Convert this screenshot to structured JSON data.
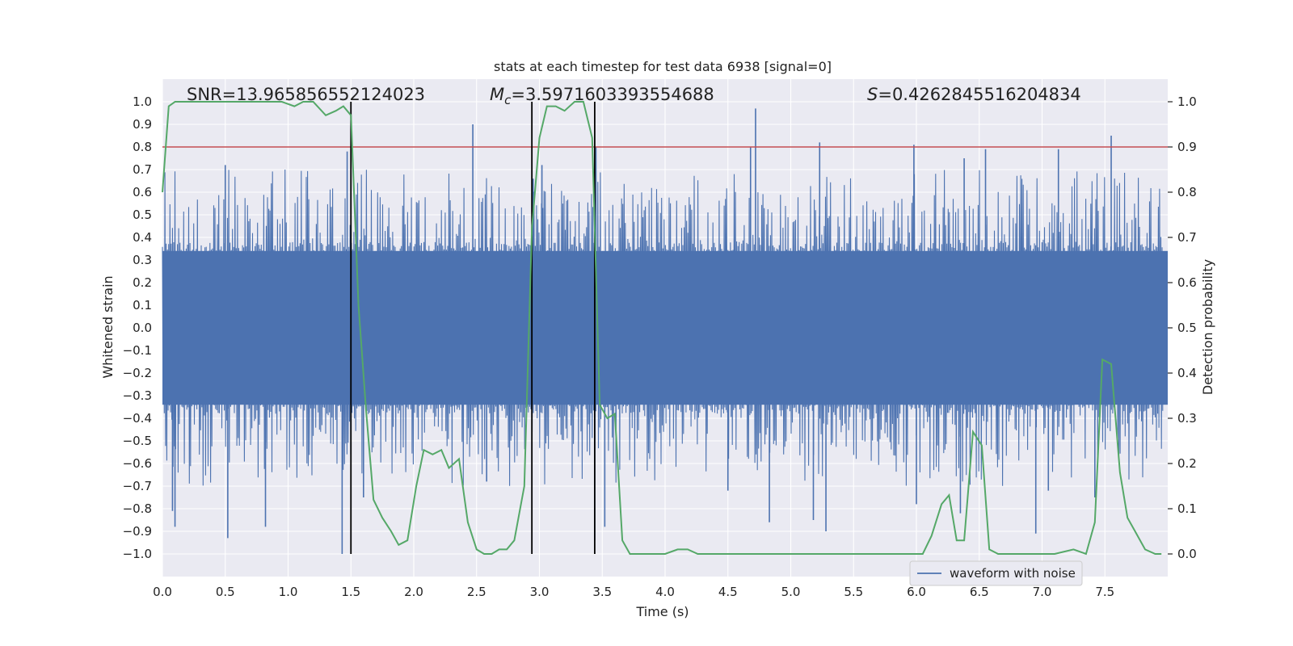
{
  "chart_data": {
    "type": "line",
    "title": "stats at each timestep for test data 6938 [signal=0]",
    "xlabel": "Time (s)",
    "ylabel_left": "Whitened strain",
    "ylabel_right": "Detection probability",
    "xlim": [
      0.0,
      8.0
    ],
    "ylim_left": [
      -1.1,
      1.1
    ],
    "ylim_right": [
      -0.05,
      1.05
    ],
    "x_ticks": [
      0.0,
      0.5,
      1.0,
      1.5,
      2.0,
      2.5,
      3.0,
      3.5,
      4.0,
      4.5,
      5.0,
      5.5,
      6.0,
      6.5,
      7.0,
      7.5
    ],
    "x_tick_labels": [
      "0.0",
      "0.5",
      "1.0",
      "1.5",
      "2.0",
      "2.5",
      "3.0",
      "3.5",
      "4.0",
      "4.5",
      "5.0",
      "5.5",
      "6.0",
      "6.5",
      "7.0",
      "7.5"
    ],
    "y_left_ticks": [
      1.0,
      0.9,
      0.8,
      0.7,
      0.6,
      0.5,
      0.4,
      0.3,
      0.2,
      0.1,
      0.0,
      -0.1,
      -0.2,
      -0.3,
      -0.4,
      -0.5,
      -0.6,
      -0.7,
      -0.8,
      -0.9,
      -1.0
    ],
    "y_left_tick_labels": [
      "1.0",
      "0.9",
      "0.8",
      "0.7",
      "0.6",
      "0.5",
      "0.4",
      "0.3",
      "0.2",
      "0.1",
      "0.0",
      "−0.1",
      "−0.2",
      "−0.3",
      "−0.4",
      "−0.5",
      "−0.6",
      "−0.7",
      "−0.8",
      "−0.9",
      "−1.0"
    ],
    "y_right_ticks": [
      1.0,
      0.9,
      0.8,
      0.7,
      0.6,
      0.5,
      0.4,
      0.3,
      0.2,
      0.1,
      0.0
    ],
    "y_right_tick_labels": [
      "1.0",
      "0.9",
      "0.8",
      "0.7",
      "0.6",
      "0.5",
      "0.4",
      "0.3",
      "0.2",
      "0.1",
      "0.0"
    ],
    "annotations": {
      "snr": "SNR=13.965856552124023",
      "mc_symbol": "M",
      "mc_subscript": "c",
      "mc_value": "=3.5971603393554688",
      "s_symbol": "S",
      "s_value": "=0.4262845516204834"
    },
    "threshold": {
      "value": 0.9,
      "axis": "right",
      "color": "#c44e52"
    },
    "vertical_markers": [
      1.5,
      2.94,
      3.44
    ],
    "legend": {
      "label": "waveform with noise",
      "placement": "lower-right"
    },
    "series": [
      {
        "name": "waveform with noise",
        "axis": "left",
        "color": "#4c72b0",
        "note": "dense noisy whitened strain; envelope approximations",
        "core_amplitude": 0.38,
        "typical_peak": 0.58,
        "spikes_positive": [
          [
            0.5,
            0.72
          ],
          [
            1.47,
            0.78
          ],
          [
            2.47,
            0.9
          ],
          [
            2.95,
            0.66
          ],
          [
            3.02,
            0.72
          ],
          [
            3.45,
            0.8
          ],
          [
            4.72,
            0.97
          ],
          [
            4.68,
            0.8
          ],
          [
            5.23,
            0.82
          ],
          [
            5.98,
            0.81
          ],
          [
            6.55,
            0.79
          ],
          [
            6.38,
            0.75
          ],
          [
            7.55,
            0.85
          ],
          [
            7.13,
            0.79
          ]
        ],
        "spikes_negative": [
          [
            0.08,
            -0.81
          ],
          [
            0.1,
            -0.88
          ],
          [
            0.52,
            -0.93
          ],
          [
            0.82,
            -0.88
          ],
          [
            1.43,
            -1.0
          ],
          [
            1.6,
            -0.75
          ],
          [
            2.58,
            -0.68
          ],
          [
            3.44,
            -0.94
          ],
          [
            3.52,
            -0.88
          ],
          [
            4.5,
            -0.72
          ],
          [
            4.83,
            -0.86
          ],
          [
            5.18,
            -0.85
          ],
          [
            5.28,
            -0.9
          ],
          [
            6.0,
            -0.78
          ],
          [
            6.35,
            -0.82
          ],
          [
            6.95,
            -0.91
          ],
          [
            7.42,
            -0.75
          ],
          [
            7.05,
            -0.72
          ]
        ]
      },
      {
        "name": "detection probability",
        "axis": "right",
        "color": "#55a868",
        "points": [
          [
            0.0,
            0.8
          ],
          [
            0.05,
            0.99
          ],
          [
            0.1,
            1.0
          ],
          [
            0.3,
            1.0
          ],
          [
            0.5,
            1.0
          ],
          [
            0.7,
            1.0
          ],
          [
            0.85,
            1.0
          ],
          [
            0.95,
            1.0
          ],
          [
            1.05,
            0.99
          ],
          [
            1.12,
            1.0
          ],
          [
            1.2,
            1.0
          ],
          [
            1.3,
            0.97
          ],
          [
            1.38,
            0.98
          ],
          [
            1.44,
            0.99
          ],
          [
            1.5,
            0.97
          ],
          [
            1.56,
            0.55
          ],
          [
            1.62,
            0.32
          ],
          [
            1.68,
            0.12
          ],
          [
            1.75,
            0.08
          ],
          [
            1.82,
            0.05
          ],
          [
            1.88,
            0.02
          ],
          [
            1.95,
            0.03
          ],
          [
            2.02,
            0.15
          ],
          [
            2.08,
            0.23
          ],
          [
            2.15,
            0.22
          ],
          [
            2.22,
            0.23
          ],
          [
            2.28,
            0.19
          ],
          [
            2.36,
            0.21
          ],
          [
            2.43,
            0.07
          ],
          [
            2.5,
            0.01
          ],
          [
            2.56,
            0.0
          ],
          [
            2.62,
            0.0
          ],
          [
            2.68,
            0.01
          ],
          [
            2.74,
            0.01
          ],
          [
            2.8,
            0.03
          ],
          [
            2.88,
            0.15
          ],
          [
            2.94,
            0.72
          ],
          [
            3.0,
            0.92
          ],
          [
            3.06,
            0.99
          ],
          [
            3.13,
            0.99
          ],
          [
            3.2,
            0.98
          ],
          [
            3.28,
            1.0
          ],
          [
            3.35,
            1.0
          ],
          [
            3.42,
            0.92
          ],
          [
            3.48,
            0.33
          ],
          [
            3.54,
            0.3
          ],
          [
            3.6,
            0.31
          ],
          [
            3.66,
            0.03
          ],
          [
            3.72,
            0.0
          ],
          [
            3.8,
            0.0
          ],
          [
            3.9,
            0.0
          ],
          [
            4.0,
            0.0
          ],
          [
            4.1,
            0.01
          ],
          [
            4.18,
            0.01
          ],
          [
            4.26,
            0.0
          ],
          [
            4.4,
            0.0
          ],
          [
            4.6,
            0.0
          ],
          [
            4.8,
            0.0
          ],
          [
            5.0,
            0.0
          ],
          [
            5.2,
            0.0
          ],
          [
            5.4,
            0.0
          ],
          [
            5.6,
            0.0
          ],
          [
            5.8,
            0.0
          ],
          [
            6.0,
            0.0
          ],
          [
            6.05,
            0.0
          ],
          [
            6.12,
            0.04
          ],
          [
            6.2,
            0.11
          ],
          [
            6.26,
            0.13
          ],
          [
            6.32,
            0.03
          ],
          [
            6.38,
            0.03
          ],
          [
            6.45,
            0.27
          ],
          [
            6.52,
            0.24
          ],
          [
            6.58,
            0.01
          ],
          [
            6.65,
            0.0
          ],
          [
            6.8,
            0.0
          ],
          [
            7.0,
            0.0
          ],
          [
            7.1,
            0.0
          ],
          [
            7.25,
            0.01
          ],
          [
            7.35,
            0.0
          ],
          [
            7.42,
            0.07
          ],
          [
            7.48,
            0.43
          ],
          [
            7.55,
            0.42
          ],
          [
            7.62,
            0.18
          ],
          [
            7.68,
            0.08
          ],
          [
            7.74,
            0.05
          ],
          [
            7.82,
            0.01
          ],
          [
            7.9,
            0.0
          ],
          [
            7.95,
            0.0
          ]
        ]
      }
    ]
  }
}
